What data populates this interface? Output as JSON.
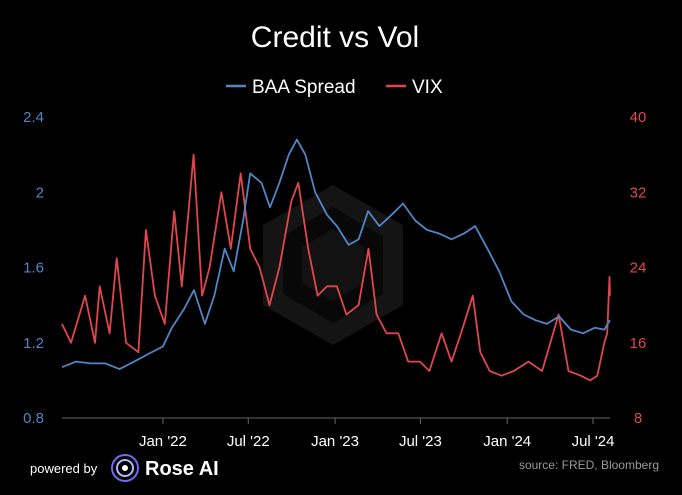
{
  "colors": {
    "background": "#000000",
    "baa": "#4f86c6",
    "vix": "#e0474c",
    "axis": "#666666",
    "text": "#ffffff",
    "source": "#9a9a9a"
  },
  "footer": {
    "powered_by": "powered by",
    "brand": "Rose AI",
    "source": "source: FRED, Bloomberg",
    "logo_icon": "rose-ai-logo-icon"
  },
  "chart_data": {
    "type": "line",
    "title": "Credit vs Vol",
    "legend_position": "top-center",
    "grid": false,
    "x_ticks": [
      "Jan '22",
      "Jul '22",
      "Jan '23",
      "Jul '23",
      "Jan '24",
      "Jul '24"
    ],
    "x_tick_dates": [
      "2022-01-01",
      "2022-07-01",
      "2023-01-01",
      "2023-07-01",
      "2024-01-01",
      "2024-07-01"
    ],
    "xlim": [
      "2021-06-01",
      "2024-08-06"
    ],
    "y_left": {
      "label": "",
      "lim": [
        0.8,
        2.4
      ],
      "ticks": [
        "0.8",
        "1.2",
        "1.6",
        "2",
        "2.4"
      ]
    },
    "y_right": {
      "label": "",
      "lim": [
        8,
        40
      ],
      "ticks": [
        "8",
        "16",
        "24",
        "32",
        "40"
      ]
    },
    "series": [
      {
        "name": "BAA Spread",
        "axis": "left",
        "color": "#4f86c6",
        "points": [
          [
            "2021-06-01",
            1.07
          ],
          [
            "2021-07-01",
            1.1
          ],
          [
            "2021-08-01",
            1.09
          ],
          [
            "2021-09-01",
            1.09
          ],
          [
            "2021-10-01",
            1.06
          ],
          [
            "2021-11-01",
            1.1
          ],
          [
            "2021-12-01",
            1.14
          ],
          [
            "2022-01-01",
            1.18
          ],
          [
            "2022-01-20",
            1.28
          ],
          [
            "2022-02-15",
            1.38
          ],
          [
            "2022-03-08",
            1.48
          ],
          [
            "2022-03-31",
            1.3
          ],
          [
            "2022-04-20",
            1.45
          ],
          [
            "2022-05-12",
            1.7
          ],
          [
            "2022-05-31",
            1.58
          ],
          [
            "2022-06-20",
            1.85
          ],
          [
            "2022-07-05",
            2.1
          ],
          [
            "2022-07-29",
            2.05
          ],
          [
            "2022-08-16",
            1.92
          ],
          [
            "2022-09-05",
            2.05
          ],
          [
            "2022-09-25",
            2.2
          ],
          [
            "2022-10-12",
            2.28
          ],
          [
            "2022-10-30",
            2.2
          ],
          [
            "2022-11-20",
            2.0
          ],
          [
            "2022-12-15",
            1.88
          ],
          [
            "2023-01-05",
            1.82
          ],
          [
            "2023-01-30",
            1.72
          ],
          [
            "2023-02-20",
            1.75
          ],
          [
            "2023-03-12",
            1.9
          ],
          [
            "2023-04-05",
            1.82
          ],
          [
            "2023-05-01",
            1.88
          ],
          [
            "2023-05-25",
            1.94
          ],
          [
            "2023-06-20",
            1.85
          ],
          [
            "2023-07-15",
            1.8
          ],
          [
            "2023-08-10",
            1.78
          ],
          [
            "2023-09-05",
            1.75
          ],
          [
            "2023-10-01",
            1.78
          ],
          [
            "2023-10-25",
            1.82
          ],
          [
            "2023-11-20",
            1.7
          ],
          [
            "2023-12-15",
            1.58
          ],
          [
            "2024-01-10",
            1.42
          ],
          [
            "2024-02-05",
            1.35
          ],
          [
            "2024-03-01",
            1.32
          ],
          [
            "2024-03-25",
            1.3
          ],
          [
            "2024-04-20",
            1.34
          ],
          [
            "2024-05-15",
            1.27
          ],
          [
            "2024-06-10",
            1.25
          ],
          [
            "2024-07-05",
            1.28
          ],
          [
            "2024-07-25",
            1.27
          ],
          [
            "2024-08-06",
            1.32
          ]
        ]
      },
      {
        "name": "VIX",
        "axis": "right",
        "color": "#e0474c",
        "points": [
          [
            "2021-06-01",
            18
          ],
          [
            "2021-06-20",
            16
          ],
          [
            "2021-07-20",
            21
          ],
          [
            "2021-08-10",
            16
          ],
          [
            "2021-08-20",
            22
          ],
          [
            "2021-09-10",
            17
          ],
          [
            "2021-09-25",
            25
          ],
          [
            "2021-10-15",
            16
          ],
          [
            "2021-11-10",
            15
          ],
          [
            "2021-11-26",
            28
          ],
          [
            "2021-12-15",
            21
          ],
          [
            "2022-01-05",
            18
          ],
          [
            "2022-01-25",
            30
          ],
          [
            "2022-02-10",
            22
          ],
          [
            "2022-03-07",
            36
          ],
          [
            "2022-03-25",
            21
          ],
          [
            "2022-04-10",
            24
          ],
          [
            "2022-05-05",
            32
          ],
          [
            "2022-05-25",
            26
          ],
          [
            "2022-06-15",
            34
          ],
          [
            "2022-07-05",
            26
          ],
          [
            "2022-07-25",
            24
          ],
          [
            "2022-08-15",
            20
          ],
          [
            "2022-09-05",
            24
          ],
          [
            "2022-09-30",
            31
          ],
          [
            "2022-10-15",
            33
          ],
          [
            "2022-11-05",
            26
          ],
          [
            "2022-11-25",
            21
          ],
          [
            "2022-12-15",
            22
          ],
          [
            "2023-01-05",
            22
          ],
          [
            "2023-01-25",
            19
          ],
          [
            "2023-02-20",
            20
          ],
          [
            "2023-03-13",
            26
          ],
          [
            "2023-03-30",
            19
          ],
          [
            "2023-04-20",
            17
          ],
          [
            "2023-05-15",
            17
          ],
          [
            "2023-06-05",
            14
          ],
          [
            "2023-06-30",
            14
          ],
          [
            "2023-07-20",
            13
          ],
          [
            "2023-08-15",
            17
          ],
          [
            "2023-09-05",
            14
          ],
          [
            "2023-09-25",
            17
          ],
          [
            "2023-10-20",
            21
          ],
          [
            "2023-11-05",
            15
          ],
          [
            "2023-11-25",
            13
          ],
          [
            "2023-12-20",
            12.5
          ],
          [
            "2024-01-15",
            13
          ],
          [
            "2024-02-15",
            14
          ],
          [
            "2024-03-15",
            13
          ],
          [
            "2024-04-19",
            19
          ],
          [
            "2024-05-10",
            13
          ],
          [
            "2024-06-05",
            12.5
          ],
          [
            "2024-06-25",
            12
          ],
          [
            "2024-07-10",
            12.5
          ],
          [
            "2024-07-25",
            16
          ],
          [
            "2024-07-31",
            17
          ],
          [
            "2024-08-05",
            23
          ],
          [
            "2024-08-06",
            21
          ]
        ]
      }
    ]
  }
}
